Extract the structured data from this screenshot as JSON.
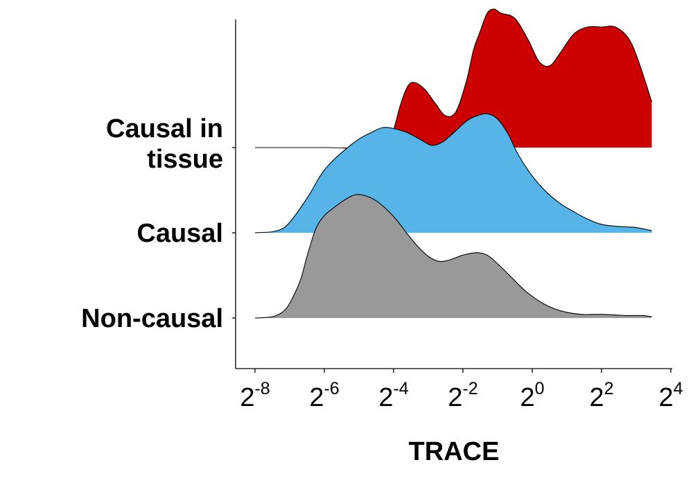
{
  "chart_data": {
    "type": "ridgeline",
    "title": "",
    "xlabel": "TRACE",
    "ylabel": "",
    "x_scale": "log2",
    "x_ticks": [
      {
        "base": "2",
        "exp": "-8",
        "value": 0.00390625
      },
      {
        "base": "2",
        "exp": "-6",
        "value": 0.015625
      },
      {
        "base": "2",
        "exp": "-4",
        "value": 0.0625
      },
      {
        "base": "2",
        "exp": "-2",
        "value": 0.25
      },
      {
        "base": "2",
        "exp": "0",
        "value": 1
      },
      {
        "base": "2",
        "exp": "2",
        "value": 4
      },
      {
        "base": "2",
        "exp": "4",
        "value": 16
      }
    ],
    "x_range_log2": [
      -8,
      3.45
    ],
    "grid": false,
    "series": [
      {
        "name": "Non-causal",
        "label_lines": [
          "Non-causal"
        ],
        "color": "#999999",
        "relative_height": 0.89,
        "density": [
          {
            "x": -8.0,
            "y": 0.0
          },
          {
            "x": -7.5,
            "y": 0.01
          },
          {
            "x": -7.2,
            "y": 0.05
          },
          {
            "x": -7.0,
            "y": 0.12
          },
          {
            "x": -6.7,
            "y": 0.3
          },
          {
            "x": -6.5,
            "y": 0.5
          },
          {
            "x": -6.25,
            "y": 0.72
          },
          {
            "x": -6.0,
            "y": 0.83
          },
          {
            "x": -5.7,
            "y": 0.9
          },
          {
            "x": -5.4,
            "y": 0.96
          },
          {
            "x": -5.1,
            "y": 1.0
          },
          {
            "x": -4.8,
            "y": 0.99
          },
          {
            "x": -4.5,
            "y": 0.95
          },
          {
            "x": -4.2,
            "y": 0.88
          },
          {
            "x": -3.9,
            "y": 0.79
          },
          {
            "x": -3.6,
            "y": 0.68
          },
          {
            "x": -3.3,
            "y": 0.58
          },
          {
            "x": -3.0,
            "y": 0.5
          },
          {
            "x": -2.7,
            "y": 0.46
          },
          {
            "x": -2.4,
            "y": 0.47
          },
          {
            "x": -2.0,
            "y": 0.51
          },
          {
            "x": -1.6,
            "y": 0.53
          },
          {
            "x": -1.3,
            "y": 0.51
          },
          {
            "x": -1.0,
            "y": 0.44
          },
          {
            "x": -0.6,
            "y": 0.33
          },
          {
            "x": -0.2,
            "y": 0.22
          },
          {
            "x": 0.3,
            "y": 0.12
          },
          {
            "x": 0.8,
            "y": 0.06
          },
          {
            "x": 1.4,
            "y": 0.03
          },
          {
            "x": 2.0,
            "y": 0.03
          },
          {
            "x": 2.7,
            "y": 0.02
          },
          {
            "x": 3.2,
            "y": 0.02
          },
          {
            "x": 3.45,
            "y": 0.01
          }
        ]
      },
      {
        "name": "Causal",
        "label_lines": [
          "Causal"
        ],
        "color": "#56B4E9",
        "relative_height": 0.76,
        "density": [
          {
            "x": -8.0,
            "y": 0.0
          },
          {
            "x": -7.5,
            "y": 0.01
          },
          {
            "x": -7.2,
            "y": 0.04
          },
          {
            "x": -7.0,
            "y": 0.1
          },
          {
            "x": -6.7,
            "y": 0.23
          },
          {
            "x": -6.4,
            "y": 0.38
          },
          {
            "x": -6.1,
            "y": 0.55
          },
          {
            "x": -5.8,
            "y": 0.67
          },
          {
            "x": -5.4,
            "y": 0.79
          },
          {
            "x": -5.0,
            "y": 0.89
          },
          {
            "x": -4.6,
            "y": 0.96
          },
          {
            "x": -4.3,
            "y": 1.0
          },
          {
            "x": -4.0,
            "y": 0.99
          },
          {
            "x": -3.6,
            "y": 0.95
          },
          {
            "x": -3.2,
            "y": 0.88
          },
          {
            "x": -2.9,
            "y": 0.83
          },
          {
            "x": -2.6,
            "y": 0.86
          },
          {
            "x": -2.3,
            "y": 0.94
          },
          {
            "x": -1.9,
            "y": 1.06
          },
          {
            "x": -1.6,
            "y": 1.11
          },
          {
            "x": -1.3,
            "y": 1.13
          },
          {
            "x": -1.0,
            "y": 1.08
          },
          {
            "x": -0.7,
            "y": 0.94
          },
          {
            "x": -0.4,
            "y": 0.74
          },
          {
            "x": 0.0,
            "y": 0.54
          },
          {
            "x": 0.4,
            "y": 0.39
          },
          {
            "x": 0.8,
            "y": 0.28
          },
          {
            "x": 1.2,
            "y": 0.2
          },
          {
            "x": 1.6,
            "y": 0.13
          },
          {
            "x": 2.0,
            "y": 0.08
          },
          {
            "x": 2.5,
            "y": 0.06
          },
          {
            "x": 3.0,
            "y": 0.05
          },
          {
            "x": 3.45,
            "y": 0.02
          }
        ]
      },
      {
        "name": "Causal in tissue",
        "label_lines": [
          "Causal in",
          "tissue"
        ],
        "color": "#CC0000",
        "relative_height": 1.0,
        "density": [
          {
            "x": -8.0,
            "y": 0.0
          },
          {
            "x": -6.0,
            "y": 0.0
          },
          {
            "x": -4.2,
            "y": 0.0
          },
          {
            "x": -4.0,
            "y": 0.13
          },
          {
            "x": -3.8,
            "y": 0.31
          },
          {
            "x": -3.6,
            "y": 0.44
          },
          {
            "x": -3.4,
            "y": 0.47
          },
          {
            "x": -3.1,
            "y": 0.42
          },
          {
            "x": -2.8,
            "y": 0.32
          },
          {
            "x": -2.5,
            "y": 0.23
          },
          {
            "x": -2.2,
            "y": 0.26
          },
          {
            "x": -1.9,
            "y": 0.48
          },
          {
            "x": -1.7,
            "y": 0.7
          },
          {
            "x": -1.5,
            "y": 0.84
          },
          {
            "x": -1.3,
            "y": 0.97
          },
          {
            "x": -1.1,
            "y": 1.0
          },
          {
            "x": -0.9,
            "y": 0.97
          },
          {
            "x": -0.6,
            "y": 0.95
          },
          {
            "x": -0.4,
            "y": 0.9
          },
          {
            "x": -0.1,
            "y": 0.77
          },
          {
            "x": 0.2,
            "y": 0.62
          },
          {
            "x": 0.5,
            "y": 0.59
          },
          {
            "x": 0.8,
            "y": 0.68
          },
          {
            "x": 1.2,
            "y": 0.82
          },
          {
            "x": 1.6,
            "y": 0.87
          },
          {
            "x": 2.0,
            "y": 0.87
          },
          {
            "x": 2.4,
            "y": 0.87
          },
          {
            "x": 2.8,
            "y": 0.78
          },
          {
            "x": 3.1,
            "y": 0.6
          },
          {
            "x": 3.45,
            "y": 0.33
          }
        ]
      }
    ]
  }
}
